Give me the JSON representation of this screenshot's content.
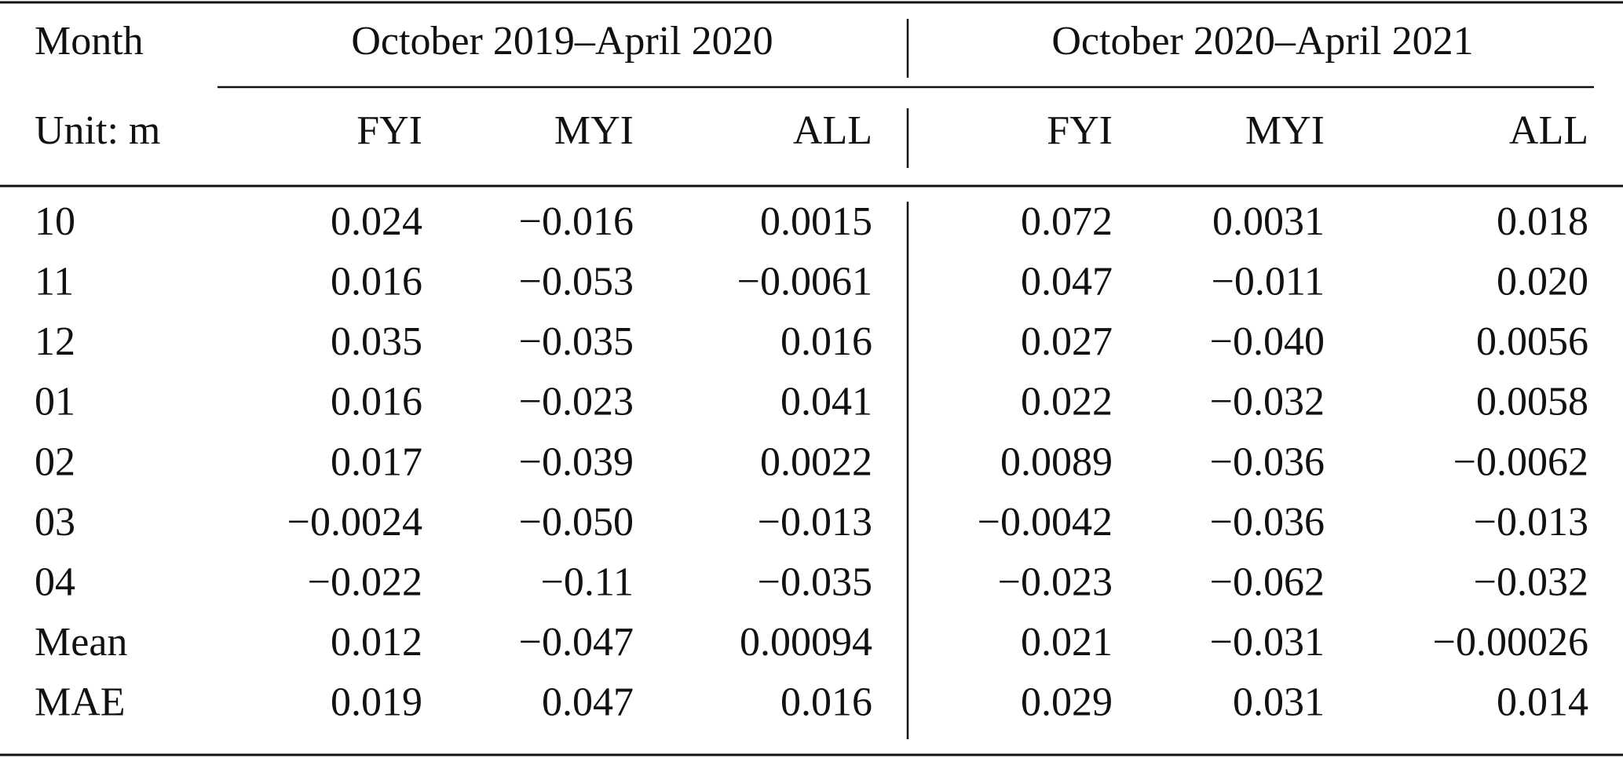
{
  "header": {
    "row1": {
      "label": "Month",
      "groups": [
        "October 2019–April 2020",
        "October 2020–April 2021"
      ]
    },
    "row2": {
      "label": "Unit: m",
      "columns": [
        "FYI",
        "MYI",
        "ALL",
        "FYI",
        "MYI",
        "ALL"
      ]
    }
  },
  "table": {
    "rows": [
      [
        "10",
        "0.024",
        "−0.016",
        "0.0015",
        "0.072",
        "0.0031",
        "0.018"
      ],
      [
        "11",
        "0.016",
        "−0.053",
        "−0.0061",
        "0.047",
        "−0.011",
        "0.020"
      ],
      [
        "12",
        "0.035",
        "−0.035",
        "0.016",
        "0.027",
        "−0.040",
        "0.0056"
      ],
      [
        "01",
        "0.016",
        "−0.023",
        "0.041",
        "0.022",
        "−0.032",
        "0.0058"
      ],
      [
        "02",
        "0.017",
        "−0.039",
        "0.0022",
        "0.0089",
        "−0.036",
        "−0.0062"
      ],
      [
        "03",
        "−0.0024",
        "−0.050",
        "−0.013",
        "−0.0042",
        "−0.036",
        "−0.013"
      ],
      [
        "04",
        "−0.022",
        "−0.11",
        "−0.035",
        "−0.023",
        "−0.062",
        "−0.032"
      ],
      [
        "Mean",
        "0.012",
        "−0.047",
        "0.00094",
        "0.021",
        "−0.031",
        "−0.00026"
      ],
      [
        "MAE",
        "0.019",
        "0.047",
        "0.016",
        "0.029",
        "0.031",
        "0.014"
      ]
    ]
  }
}
